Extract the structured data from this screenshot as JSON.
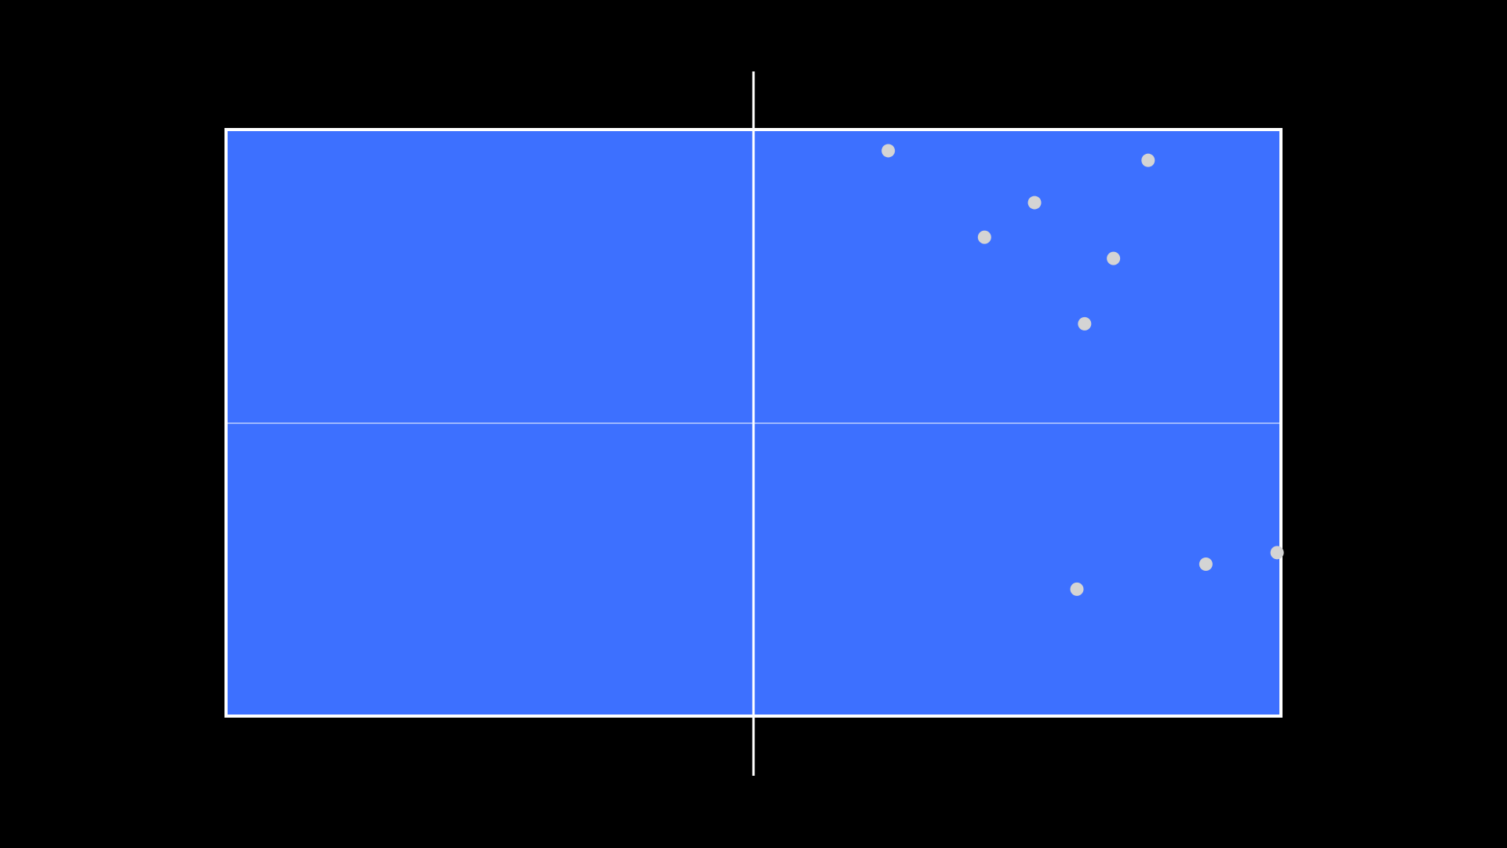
{
  "chart_data": {
    "type": "scatter",
    "x": [
      172,
      239.5,
      210,
      197,
      230.5,
      223,
      221,
      254.5,
      273
    ],
    "values": [
      147,
      144.5,
      133.5,
      124.5,
      119,
      102,
      33,
      39.5,
      42.5
    ],
    "color": "#d4d4d4",
    "plot_background": "#3d70ff",
    "xlim": [
      0,
      274
    ],
    "ylim": [
      0,
      152.5
    ],
    "grid": false
  }
}
